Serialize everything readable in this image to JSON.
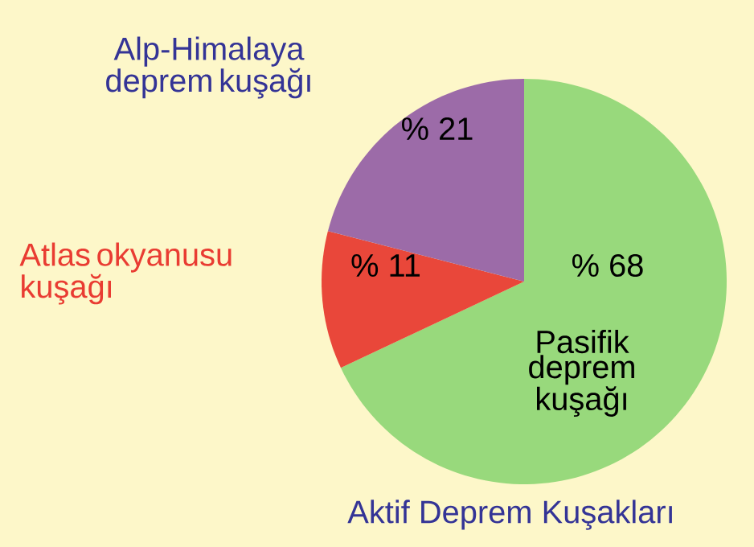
{
  "chart_data": {
    "type": "pie",
    "title": "Aktif Deprem Kuşakları",
    "categories": [
      "Pasifik deprem kuşağı",
      "Atlas okyanusu kuşağı",
      "Alp-Himalaya deprem kuşağı"
    ],
    "values": [
      68,
      11,
      21
    ],
    "value_labels": [
      "% 68",
      "% 11",
      "% 21"
    ],
    "colors": [
      "#98d97c",
      "#e9473a",
      "#9c6ba8"
    ]
  }
}
